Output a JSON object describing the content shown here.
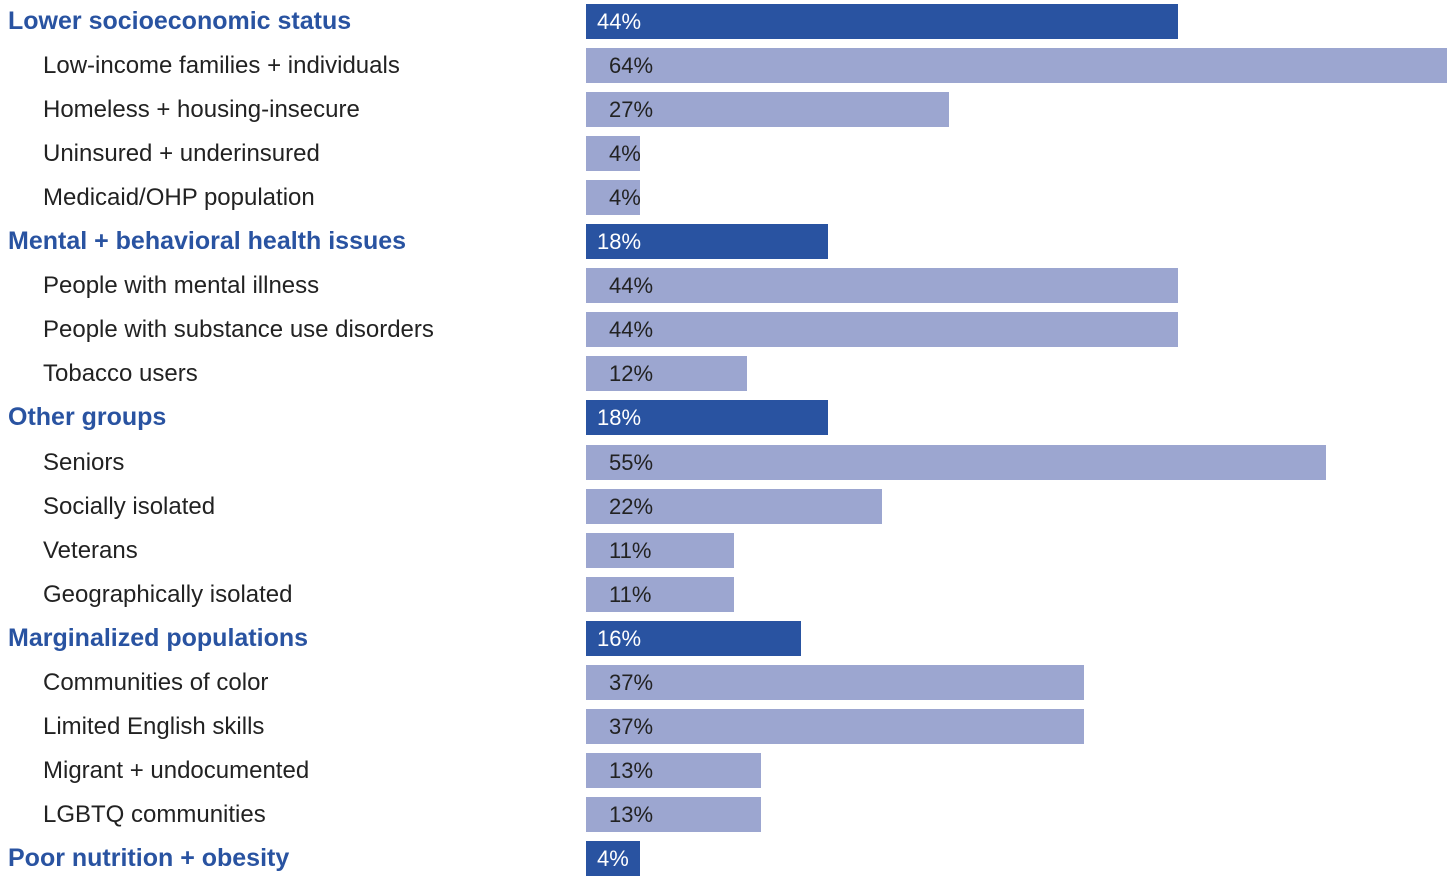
{
  "chart_data": {
    "type": "bar",
    "orientation": "horizontal",
    "title": "",
    "xlabel": "",
    "ylabel": "",
    "xlim": [
      0,
      64
    ],
    "grid": false,
    "legend": "none",
    "value_format": "percent",
    "colors": {
      "group": "#2953a1",
      "subgroup": "#9ca6d0",
      "group_label": "#2953a1",
      "subgroup_label": "#222222"
    },
    "rows": [
      {
        "label": "Lower socioeconomic status",
        "value": 44,
        "value_label": "44%",
        "level": "group"
      },
      {
        "label": "Low-income families + individuals",
        "value": 64,
        "value_label": "64%",
        "level": "sub"
      },
      {
        "label": "Homeless + housing-insecure",
        "value": 27,
        "value_label": "27%",
        "level": "sub"
      },
      {
        "label": "Uninsured + underinsured",
        "value": 4,
        "value_label": "4%",
        "level": "sub"
      },
      {
        "label": "Medicaid/OHP population",
        "value": 4,
        "value_label": "4%",
        "level": "sub"
      },
      {
        "label": "Mental + behavioral health issues",
        "value": 18,
        "value_label": "18%",
        "level": "group"
      },
      {
        "label": "People with mental illness",
        "value": 44,
        "value_label": "44%",
        "level": "sub"
      },
      {
        "label": "People with substance use disorders",
        "value": 44,
        "value_label": "44%",
        "level": "sub"
      },
      {
        "label": "Tobacco users",
        "value": 12,
        "value_label": "12%",
        "level": "sub"
      },
      {
        "label": "Other groups",
        "value": 18,
        "value_label": "18%",
        "level": "group"
      },
      {
        "label": "Seniors",
        "value": 55,
        "value_label": "55%",
        "level": "sub"
      },
      {
        "label": "Socially isolated",
        "value": 22,
        "value_label": "22%",
        "level": "sub"
      },
      {
        "label": "Veterans",
        "value": 11,
        "value_label": "11%",
        "level": "sub"
      },
      {
        "label": "Geographically isolated",
        "value": 11,
        "value_label": "11%",
        "level": "sub"
      },
      {
        "label": "Marginalized populations",
        "value": 16,
        "value_label": "16%",
        "level": "group"
      },
      {
        "label": "Communities of color",
        "value": 37,
        "value_label": "37%",
        "level": "sub"
      },
      {
        "label": "Limited English skills",
        "value": 37,
        "value_label": "37%",
        "level": "sub"
      },
      {
        "label": "Migrant + undocumented",
        "value": 13,
        "value_label": "13%",
        "level": "sub"
      },
      {
        "label": "LGBTQ communities",
        "value": 13,
        "value_label": "13%",
        "level": "sub"
      },
      {
        "label": "Poor nutrition + obesity",
        "value": 4,
        "value_label": "4%",
        "level": "group"
      }
    ]
  }
}
